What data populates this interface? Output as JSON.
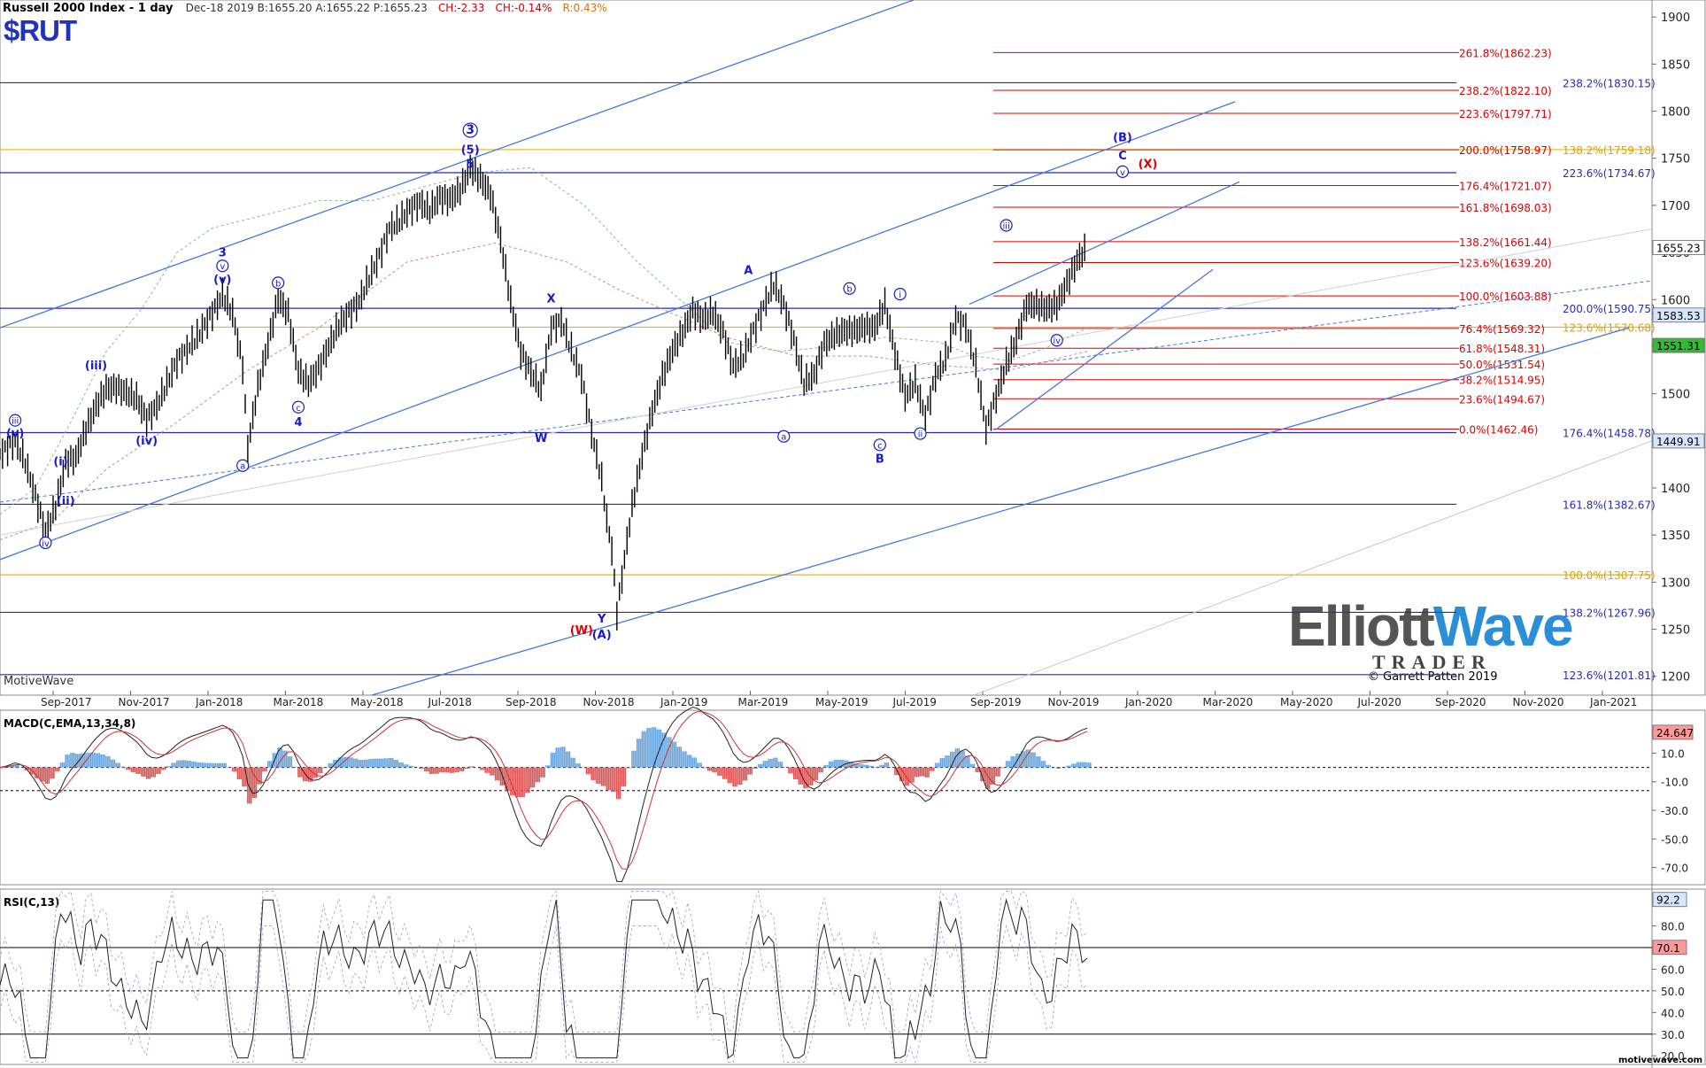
{
  "header": {
    "title": "Russell 2000 Index - 1 day",
    "quote": "Dec-18 2019  B:1655.20  A:1655.22  P:1655.23",
    "change_abs": "CH:-2.33",
    "change_pct": "CH:-0.14%",
    "range": "R:0.43%",
    "symbol": "$RUT"
  },
  "watermark": "MotiveWave",
  "logo": {
    "line1a": "Elliott",
    "line1b": "Wave",
    "line2": "TRADER"
  },
  "copyright": "© Garrett Patten 2019",
  "motivewave_url": "motivewave.com",
  "colors": {
    "blue": "#1a1acc",
    "red": "#dd0000",
    "orange": "#e0a000",
    "lightblue": "#4477dd",
    "price": "#000000"
  },
  "chart_data": [
    {
      "type": "line",
      "name": "price",
      "title": "Russell 2000 Index - 1 day",
      "y_ticks": [
        1200,
        1250,
        1300,
        1350,
        1400,
        1450,
        1500,
        1550,
        1600,
        1650,
        1700,
        1750,
        1800,
        1850,
        1900
      ],
      "ylim": [
        1180,
        1918
      ],
      "x_ticks": [
        "Sep-2017",
        "Nov-2017",
        "Jan-2018",
        "Mar-2018",
        "May-2018",
        "Jul-2018",
        "Sep-2018",
        "Nov-2018",
        "Jan-2019",
        "Mar-2019",
        "May-2019",
        "Jul-2019",
        "Sep-2019",
        "Nov-2019",
        "Jan-2020",
        "Mar-2020",
        "May-2020",
        "Jul-2020",
        "Sep-2020",
        "Nov-2020",
        "Jan-2021"
      ],
      "price_path": [
        [
          0,
          1436
        ],
        [
          3,
          1450
        ],
        [
          5,
          1427
        ],
        [
          7,
          1392
        ],
        [
          9,
          1353
        ],
        [
          11,
          1380
        ],
        [
          13,
          1428
        ],
        [
          15,
          1432
        ],
        [
          17,
          1462
        ],
        [
          19,
          1487
        ],
        [
          21,
          1505
        ],
        [
          23,
          1507
        ],
        [
          25,
          1501
        ],
        [
          27,
          1495
        ],
        [
          29,
          1473
        ],
        [
          31,
          1487
        ],
        [
          33,
          1510
        ],
        [
          35,
          1535
        ],
        [
          37,
          1547
        ],
        [
          39,
          1560
        ],
        [
          41,
          1577
        ],
        [
          43,
          1595
        ],
        [
          44,
          1605
        ],
        [
          46,
          1585
        ],
        [
          48,
          1529
        ],
        [
          49,
          1443
        ],
        [
          51,
          1507
        ],
        [
          53,
          1553
        ],
        [
          55,
          1601
        ],
        [
          57,
          1585
        ],
        [
          59,
          1524
        ],
        [
          61,
          1511
        ],
        [
          63,
          1527
        ],
        [
          65,
          1550
        ],
        [
          67,
          1573
        ],
        [
          69,
          1586
        ],
        [
          71,
          1597
        ],
        [
          73,
          1623
        ],
        [
          75,
          1646
        ],
        [
          77,
          1675
        ],
        [
          79,
          1683
        ],
        [
          81,
          1696
        ],
        [
          83,
          1703
        ],
        [
          85,
          1694
        ],
        [
          87,
          1709
        ],
        [
          89,
          1706
        ],
        [
          91,
          1716
        ],
        [
          93,
          1740
        ],
        [
          95,
          1728
        ],
        [
          97,
          1712
        ],
        [
          99,
          1663
        ],
        [
          101,
          1597
        ],
        [
          103,
          1544
        ],
        [
          105,
          1523
        ],
        [
          107,
          1504
        ],
        [
          109,
          1570
        ],
        [
          111,
          1577
        ],
        [
          113,
          1546
        ],
        [
          115,
          1518
        ],
        [
          117,
          1459
        ],
        [
          119,
          1408
        ],
        [
          120,
          1366
        ],
        [
          121,
          1335
        ],
        [
          122,
          1268
        ],
        [
          123,
          1305
        ],
        [
          125,
          1380
        ],
        [
          127,
          1435
        ],
        [
          129,
          1482
        ],
        [
          131,
          1518
        ],
        [
          133,
          1546
        ],
        [
          135,
          1565
        ],
        [
          137,
          1588
        ],
        [
          139,
          1579
        ],
        [
          141,
          1586
        ],
        [
          143,
          1565
        ],
        [
          145,
          1529
        ],
        [
          147,
          1539
        ],
        [
          149,
          1567
        ],
        [
          151,
          1592
        ],
        [
          153,
          1616
        ],
        [
          155,
          1595
        ],
        [
          157,
          1557
        ],
        [
          159,
          1511
        ],
        [
          161,
          1520
        ],
        [
          163,
          1553
        ],
        [
          165,
          1562
        ],
        [
          167,
          1567
        ],
        [
          169,
          1567
        ],
        [
          171,
          1571
        ],
        [
          173,
          1570
        ],
        [
          175,
          1595
        ],
        [
          177,
          1543
        ],
        [
          179,
          1497
        ],
        [
          181,
          1512
        ],
        [
          183,
          1475
        ],
        [
          185,
          1519
        ],
        [
          187,
          1536
        ],
        [
          189,
          1580
        ],
        [
          191,
          1572
        ],
        [
          193,
          1529
        ],
        [
          195,
          1463
        ],
        [
          197,
          1497
        ],
        [
          199,
          1531
        ],
        [
          201,
          1557
        ],
        [
          203,
          1594
        ],
        [
          205,
          1594
        ],
        [
          207,
          1590
        ],
        [
          209,
          1594
        ],
        [
          211,
          1617
        ],
        [
          213,
          1641
        ],
        [
          215,
          1655
        ]
      ],
      "series_note": "x index: trading-day buckets (~2/week) from Jul-2017 to Dec-18-2019",
      "fib_red": [
        {
          "label": "261.8%(1862.23)",
          "value": 1862.23
        },
        {
          "label": "238.2%(1822.10)",
          "value": 1822.1
        },
        {
          "label": "223.6%(1797.71)",
          "value": 1797.71
        },
        {
          "label": "200.0%(1758.97)",
          "value": 1758.97
        },
        {
          "label": "176.4%(1721.07)",
          "value": 1721.07
        },
        {
          "label": "161.8%(1698.03)",
          "value": 1698.03
        },
        {
          "label": "138.2%(1661.44)",
          "value": 1661.44
        },
        {
          "label": "123.6%(1639.20)",
          "value": 1639.2
        },
        {
          "label": "100.0%(1603.88)",
          "value": 1603.88
        },
        {
          "label": "76.4%(1569.32)",
          "value": 1569.32
        },
        {
          "label": "61.8%(1548.31)",
          "value": 1548.31
        },
        {
          "label": "50.0%(1531.54)",
          "value": 1531.54
        },
        {
          "label": "38.2%(1514.95)",
          "value": 1514.95
        },
        {
          "label": "23.6%(1494.67)",
          "value": 1494.67
        },
        {
          "label": "0.0%(1462.46)",
          "value": 1462.46
        }
      ],
      "fib_blue": [
        {
          "label": "238.2%(1830.15)",
          "value": 1830.15
        },
        {
          "label": "223.6%(1734.67)",
          "value": 1734.67
        },
        {
          "label": "200.0%(1590.75)",
          "value": 1590.75
        },
        {
          "label": "176.4%(1458.78)",
          "value": 1458.78
        },
        {
          "label": "161.8%(1382.67)",
          "value": 1382.67
        },
        {
          "label": "138.2%(1267.96)",
          "value": 1267.96
        },
        {
          "label": "123.6%(1201.81)",
          "value": 1201.81
        }
      ],
      "fib_orange": [
        {
          "label": "138.2%(1759.18)",
          "value": 1759.18
        },
        {
          "label": "123.6%(1570.68)",
          "value": 1570.68
        },
        {
          "label": "100.0%(1307.75)",
          "value": 1307.75
        }
      ],
      "price_tags": [
        {
          "label": "1655.23",
          "value": 1655.23,
          "style": "white"
        },
        {
          "label": "1583.53",
          "value": 1583.53,
          "style": "blue"
        },
        {
          "label": "1551.31",
          "value": 1551.31,
          "style": "green"
        },
        {
          "label": "1449.91",
          "value": 1449.91,
          "style": "blue"
        }
      ],
      "wave_labels": [
        {
          "text": "3",
          "x": 93,
          "y": 1776,
          "color": "blue",
          "circle": true,
          "bold": true
        },
        {
          "text": "(5)",
          "x": 93,
          "y": 1755,
          "color": "blue"
        },
        {
          "text": "5",
          "x": 93,
          "y": 1740,
          "color": "blue"
        },
        {
          "text": "3",
          "x": 44,
          "y": 1646,
          "color": "blue"
        },
        {
          "text": "v",
          "x": 44,
          "y": 1632,
          "color": "blue",
          "circle": true
        },
        {
          "text": "(v)",
          "x": 44,
          "y": 1617,
          "color": "blue"
        },
        {
          "text": "b",
          "x": 55,
          "y": 1614,
          "color": "blue",
          "circle": true
        },
        {
          "text": "(iii)",
          "x": 19,
          "y": 1526,
          "color": "blue"
        },
        {
          "text": "iii",
          "x": 3,
          "y": 1468,
          "color": "blue",
          "circle": true
        },
        {
          "text": "(v)",
          "x": 3,
          "y": 1454,
          "color": "blue"
        },
        {
          "text": "(i)",
          "x": 12,
          "y": 1424,
          "color": "blue"
        },
        {
          "text": "(ii)",
          "x": 13,
          "y": 1382,
          "color": "blue"
        },
        {
          "text": "iv",
          "x": 9,
          "y": 1338,
          "color": "blue",
          "circle": true
        },
        {
          "text": "(iv)",
          "x": 29,
          "y": 1446,
          "color": "blue"
        },
        {
          "text": "a",
          "x": 48,
          "y": 1420,
          "color": "blue",
          "circle": true
        },
        {
          "text": "c",
          "x": 59,
          "y": 1482,
          "color": "blue",
          "circle": true
        },
        {
          "text": "4",
          "x": 59,
          "y": 1466,
          "color": "blue"
        },
        {
          "text": "X",
          "x": 109,
          "y": 1597,
          "color": "blue"
        },
        {
          "text": "W",
          "x": 107,
          "y": 1449,
          "color": "blue"
        },
        {
          "text": "Y",
          "x": 119,
          "y": 1257,
          "color": "blue"
        },
        {
          "text": "(W)",
          "x": 115,
          "y": 1245,
          "color": "red"
        },
        {
          "text": "(A)",
          "x": 119,
          "y": 1240,
          "color": "blue"
        },
        {
          "text": "A",
          "x": 148,
          "y": 1627,
          "color": "blue"
        },
        {
          "text": "a",
          "x": 155,
          "y": 1451,
          "color": "blue",
          "circle": true
        },
        {
          "text": "b",
          "x": 168,
          "y": 1608,
          "color": "blue",
          "circle": true
        },
        {
          "text": "c",
          "x": 174,
          "y": 1442,
          "color": "blue",
          "circle": true
        },
        {
          "text": "B",
          "x": 174,
          "y": 1427,
          "color": "blue"
        },
        {
          "text": "i",
          "x": 178,
          "y": 1602,
          "color": "blue",
          "circle": true
        },
        {
          "text": "ii",
          "x": 182,
          "y": 1454,
          "color": "blue",
          "circle": true
        },
        {
          "text": "iii",
          "x": 199,
          "y": 1675,
          "color": "blue",
          "circle": true
        },
        {
          "text": "iv",
          "x": 209,
          "y": 1553,
          "color": "blue",
          "circle": true
        },
        {
          "text": "(B)",
          "x": 222,
          "y": 1768,
          "color": "blue"
        },
        {
          "text": "C",
          "x": 222,
          "y": 1749,
          "color": "blue"
        },
        {
          "text": "v",
          "x": 222,
          "y": 1732,
          "color": "blue",
          "circle": true
        },
        {
          "text": "(X)",
          "x": 227,
          "y": 1740,
          "color": "red"
        }
      ]
    },
    {
      "type": "line",
      "name": "macd",
      "title": "MACD(C,EMA,13,34,8)",
      "y_ticks": [
        "10.0",
        "-10.0",
        "-30.0",
        "-50.0",
        "-70.0"
      ],
      "y_tick_values": [
        10,
        -10,
        -30,
        -50,
        -70
      ],
      "ylim": [
        -82,
        40
      ],
      "last_tag": "24.647"
    },
    {
      "type": "line",
      "name": "rsi",
      "title": "RSI(C,13)",
      "y_ticks": [
        "80.0",
        "60.0",
        "50.0",
        "40.0",
        "30.0",
        "20.0"
      ],
      "y_tick_values": [
        80,
        60,
        50,
        40,
        30,
        20
      ],
      "ylim": [
        16,
        97
      ],
      "tags": [
        {
          "label": "92.2",
          "value": 92.2,
          "style": "blue"
        },
        {
          "label": "70.1",
          "value": 70.1,
          "style": "red"
        }
      ],
      "levels": [
        70,
        50,
        30
      ]
    }
  ]
}
